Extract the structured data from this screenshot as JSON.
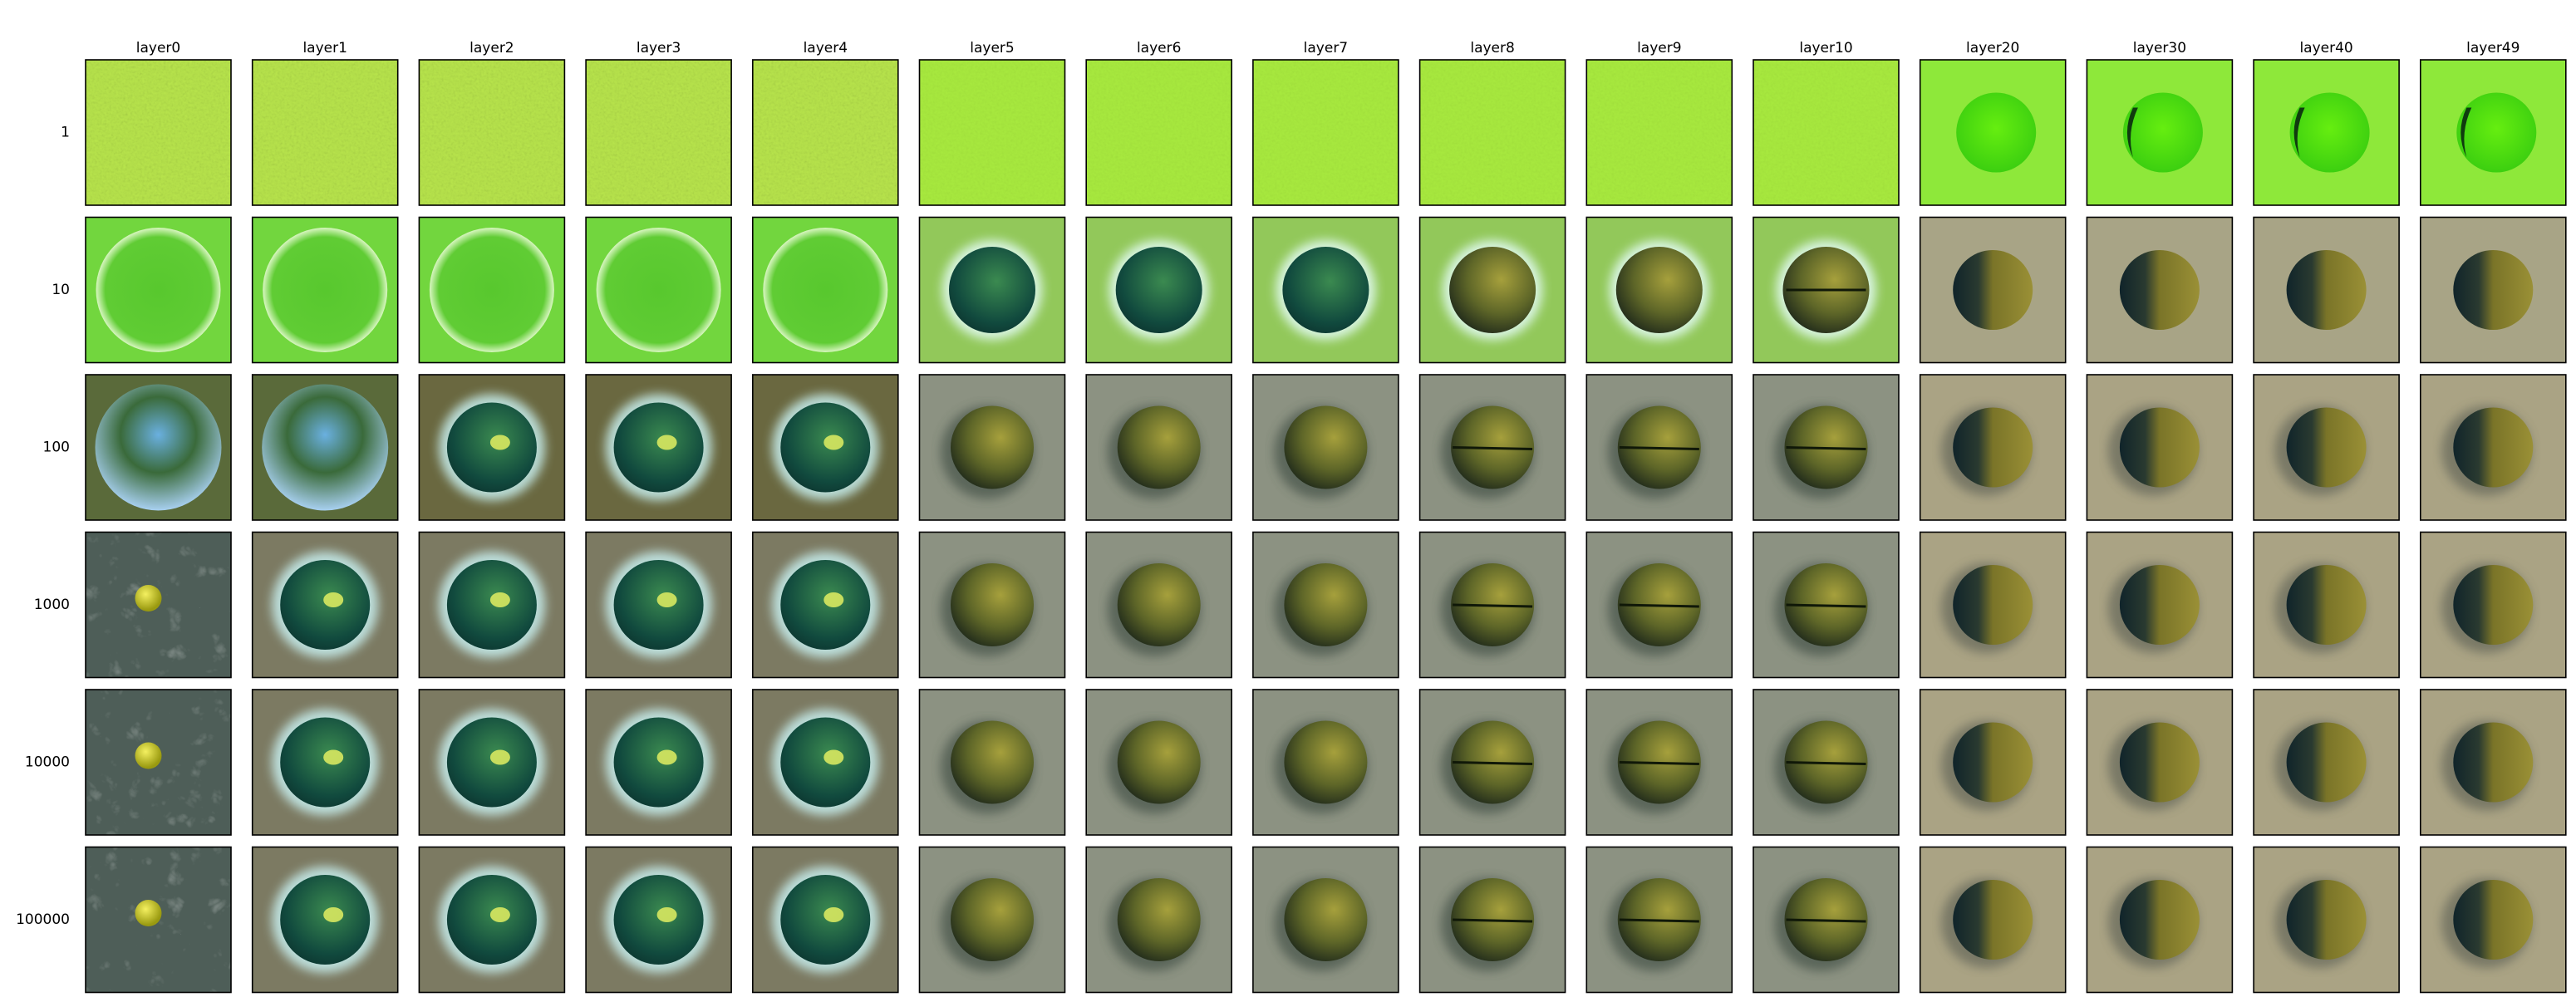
{
  "columns": [
    "layer0",
    "layer1",
    "layer2",
    "layer3",
    "layer4",
    "layer5",
    "layer6",
    "layer7",
    "layer8",
    "layer9",
    "layer10",
    "layer20",
    "layer30",
    "layer40",
    "layer49"
  ],
  "rows": [
    "1",
    "10",
    "100",
    "1000",
    "10000",
    "100000"
  ]
}
